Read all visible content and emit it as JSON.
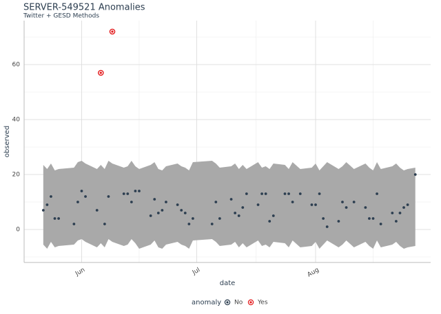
{
  "chart_data": {
    "type": "anomaly-scatter",
    "title": "SERVER-549521 Anomalies",
    "subtitle": "Twitter + GESD Methods",
    "xlabel": "date",
    "ylabel": "observed",
    "xlim": [
      137,
      243
    ],
    "xticks": [
      {
        "value": 152,
        "label": "Jun"
      },
      {
        "value": 182,
        "label": "Jul"
      },
      {
        "value": 213,
        "label": "Aug"
      }
    ],
    "xminor": [
      167,
      197.5,
      228
    ],
    "ylim": [
      -12,
      76
    ],
    "yticks": [
      0,
      20,
      40,
      60
    ],
    "yminor": [
      -10,
      10,
      30,
      50,
      70
    ],
    "grid": true,
    "band_color": "#a9a9a9",
    "x": [
      142,
      143,
      144,
      145,
      146,
      150,
      151,
      152,
      153,
      156,
      157,
      158,
      159,
      160,
      163,
      164,
      165,
      166,
      167,
      170,
      171,
      172,
      173,
      174,
      177,
      178,
      179,
      180,
      181,
      186,
      187,
      188,
      191,
      192,
      193,
      194,
      195,
      198,
      199,
      200,
      201,
      202,
      205,
      206,
      207,
      209,
      212,
      213,
      214,
      215,
      216,
      219,
      220,
      221,
      223,
      226,
      227,
      228,
      229,
      230,
      233,
      234,
      235,
      236,
      237,
      239
    ],
    "values": [
      7,
      9,
      12,
      4,
      4,
      2,
      10,
      14,
      12,
      7,
      57,
      2,
      12,
      72,
      13,
      13,
      10,
      14,
      14,
      5,
      11,
      6,
      7,
      10,
      9,
      7,
      6,
      2,
      4,
      2,
      10,
      4,
      11,
      6,
      5,
      8,
      13,
      9,
      13,
      13,
      3,
      5,
      13,
      13,
      10,
      13,
      9,
      9,
      13,
      4,
      1,
      3,
      10,
      8,
      10,
      8,
      4,
      4,
      13,
      2,
      6,
      3,
      6,
      8,
      9,
      20
    ],
    "upper": [
      23.5,
      22,
      24,
      21.5,
      22,
      22.5,
      24.5,
      25,
      24,
      22,
      23.5,
      22,
      25,
      24,
      22.5,
      23,
      25,
      23,
      22,
      23.5,
      24.5,
      22,
      21.5,
      23,
      24,
      23,
      22.5,
      21.5,
      24.5,
      25,
      24,
      22.5,
      23,
      24,
      22,
      23.5,
      22,
      24.5,
      22.5,
      23,
      22,
      24,
      23.5,
      22,
      24.5,
      22,
      22.5,
      24,
      21.5,
      23,
      24.5,
      22,
      23,
      24.5,
      22,
      24,
      22.5,
      21.5,
      24.5,
      22,
      23,
      24,
      22.5,
      21.5,
      22,
      22.5
    ],
    "lower": [
      -5.5,
      -7,
      -4.5,
      -6.5,
      -6,
      -5.5,
      -4,
      -3.5,
      -4.5,
      -6.5,
      -5,
      -6.5,
      -3.5,
      -4.5,
      -6,
      -5.5,
      -3.5,
      -5,
      -7,
      -5.5,
      -4,
      -6.5,
      -7,
      -5.5,
      -4.5,
      -5.5,
      -6,
      -7,
      -4,
      -3.5,
      -4.5,
      -6,
      -5.5,
      -4.5,
      -6.5,
      -5,
      -6.5,
      -4,
      -6,
      -5.5,
      -6.5,
      -4.5,
      -5,
      -6.5,
      -4,
      -6.5,
      -6,
      -4.5,
      -7,
      -5.5,
      -4,
      -6.5,
      -5.5,
      -4,
      -6.5,
      -4.5,
      -6,
      -7,
      -4,
      -6.5,
      -5.5,
      -4.5,
      -6,
      -7,
      -6.5,
      -6
    ],
    "anomaly": [
      0,
      0,
      0,
      0,
      0,
      0,
      0,
      0,
      0,
      0,
      1,
      0,
      0,
      1,
      0,
      0,
      0,
      0,
      0,
      0,
      0,
      0,
      0,
      0,
      0,
      0,
      0,
      0,
      0,
      0,
      0,
      0,
      0,
      0,
      0,
      0,
      0,
      0,
      0,
      0,
      0,
      0,
      0,
      0,
      0,
      0,
      0,
      0,
      0,
      0,
      0,
      0,
      0,
      0,
      0,
      0,
      0,
      0,
      0,
      0,
      0,
      0,
      0,
      0,
      0,
      0
    ],
    "legend": {
      "title": "anomaly",
      "items": [
        {
          "name": "No",
          "color": "#2c3e50"
        },
        {
          "name": "Yes",
          "color": "#e31a1c"
        }
      ]
    }
  }
}
